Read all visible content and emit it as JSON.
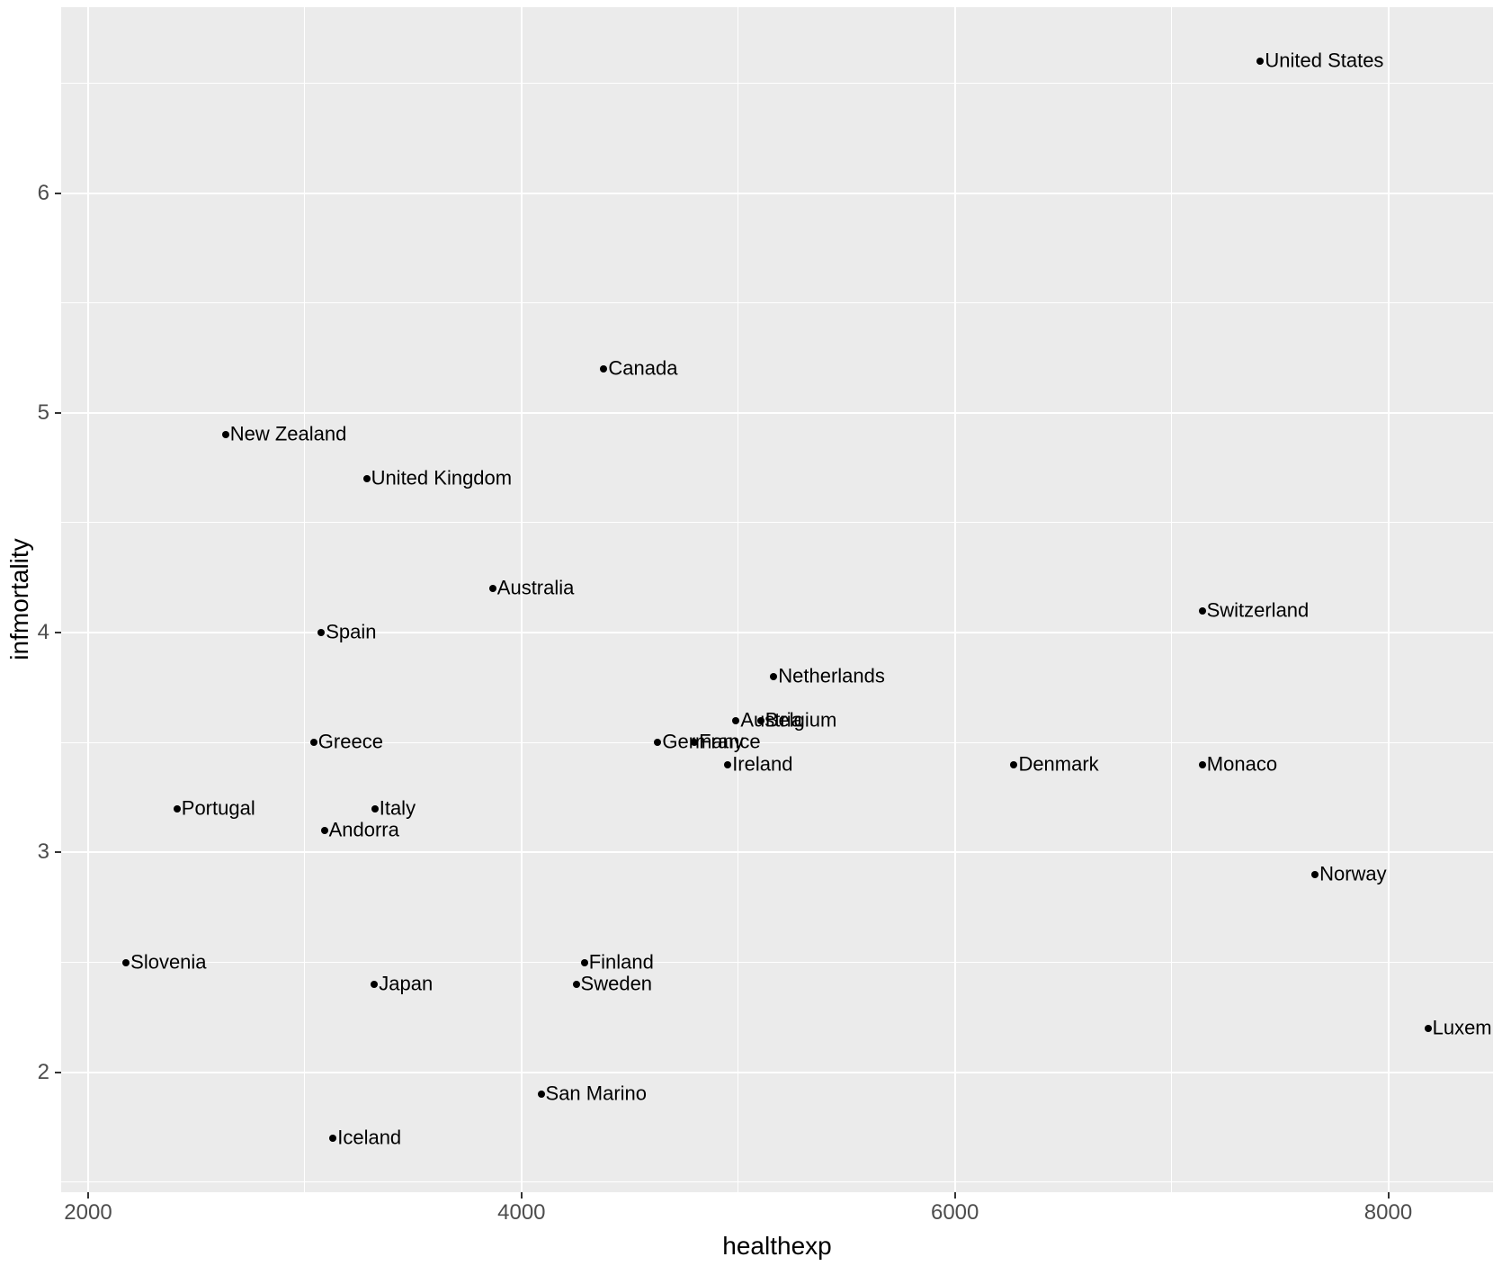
{
  "chart_data": {
    "type": "scatter",
    "title": "",
    "xlabel": "healthexp",
    "ylabel": "infmortality",
    "xlim": [
      1875.5,
      8483.5
    ],
    "ylim": [
      1.4545,
      6.8455
    ],
    "x_major_ticks": [
      2000,
      4000,
      6000,
      8000
    ],
    "x_major_tick_labels": [
      "2000",
      "4000",
      "6000",
      "8000"
    ],
    "x_minor_ticks": [
      3000,
      5000,
      7000
    ],
    "y_major_ticks": [
      2,
      3,
      4,
      5,
      6
    ],
    "y_major_tick_labels": [
      "2",
      "3",
      "4",
      "5",
      "6"
    ],
    "y_minor_ticks": [
      1.5,
      2.5,
      3.5,
      4.5,
      5.5,
      6.5
    ],
    "grid": true,
    "legend_position": "none",
    "points": [
      {
        "label": "Andorra",
        "x": 3090,
        "y": 3.1
      },
      {
        "label": "Australia",
        "x": 3867,
        "y": 4.2
      },
      {
        "label": "Austria",
        "x": 4990,
        "y": 3.6
      },
      {
        "label": "Belgium",
        "x": 5104,
        "y": 3.6
      },
      {
        "label": "Canada",
        "x": 4380,
        "y": 5.2
      },
      {
        "label": "Denmark",
        "x": 6273,
        "y": 3.4
      },
      {
        "label": "Finland",
        "x": 4290,
        "y": 2.5
      },
      {
        "label": "France",
        "x": 4798,
        "y": 3.5
      },
      {
        "label": "Germany",
        "x": 4629,
        "y": 3.5
      },
      {
        "label": "Greece",
        "x": 3041,
        "y": 3.5
      },
      {
        "label": "Iceland",
        "x": 3130,
        "y": 1.7
      },
      {
        "label": "Ireland",
        "x": 4952,
        "y": 3.4
      },
      {
        "label": "Italy",
        "x": 3323,
        "y": 3.2
      },
      {
        "label": "Japan",
        "x": 3321,
        "y": 2.4
      },
      {
        "label": "Luxembourg",
        "x": 8183,
        "y": 2.2
      },
      {
        "label": "Monaco",
        "x": 7142,
        "y": 3.4
      },
      {
        "label": "Netherlands",
        "x": 5164,
        "y": 3.8
      },
      {
        "label": "New Zealand",
        "x": 2634,
        "y": 4.9
      },
      {
        "label": "Norway",
        "x": 7662,
        "y": 2.9
      },
      {
        "label": "Portugal",
        "x": 2410,
        "y": 3.2
      },
      {
        "label": "San Marino",
        "x": 4090,
        "y": 1.9
      },
      {
        "label": "Slovenia",
        "x": 2175,
        "y": 2.5
      },
      {
        "label": "Spain",
        "x": 3076,
        "y": 4.0
      },
      {
        "label": "Sweden",
        "x": 4252,
        "y": 2.4
      },
      {
        "label": "Switzerland",
        "x": 7141,
        "y": 4.1
      },
      {
        "label": "United Kingdom",
        "x": 3285,
        "y": 4.7
      },
      {
        "label": "United States",
        "x": 7410,
        "y": 6.6
      }
    ]
  },
  "style": {
    "panel_bg": "#EBEBEB",
    "grid_color": "#FFFFFF",
    "point_color": "#000000",
    "point_label_color": "#000000",
    "tick_mark_color": "#333333",
    "tick_label_color": "#4D4D4D",
    "axis_title_color": "#000000",
    "background": "#FFFFFF"
  }
}
